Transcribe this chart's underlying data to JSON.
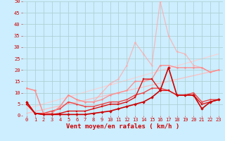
{
  "title": "",
  "xlabel": "Vent moyen/en rafales ( km/h )",
  "background_color": "#cceeff",
  "grid_color": "#aacccc",
  "xlim": [
    -0.5,
    23.5
  ],
  "ylim": [
    0,
    50
  ],
  "yticks": [
    0,
    5,
    10,
    15,
    20,
    25,
    30,
    35,
    40,
    45,
    50
  ],
  "xticks": [
    0,
    1,
    2,
    3,
    4,
    5,
    6,
    7,
    8,
    9,
    10,
    11,
    12,
    13,
    14,
    15,
    16,
    17,
    18,
    19,
    20,
    21,
    22,
    23
  ],
  "lines": [
    {
      "x": [
        0,
        1,
        2,
        3,
        4,
        5,
        6,
        7,
        8,
        9,
        10,
        11,
        12,
        13,
        14,
        15,
        16,
        17,
        18,
        19,
        20,
        21,
        22,
        23
      ],
      "y": [
        6,
        1,
        0.5,
        0.5,
        0.5,
        0.5,
        0.5,
        0.5,
        1,
        1.5,
        2,
        3,
        4,
        5,
        6,
        8,
        11,
        21,
        9,
        9,
        9,
        3,
        6,
        7
      ],
      "color": "#cc0000",
      "lw": 1.2,
      "marker": "D",
      "ms": 2.0,
      "alpha": 1.0,
      "zorder": 5
    },
    {
      "x": [
        0,
        1,
        2,
        3,
        4,
        5,
        6,
        7,
        8,
        9,
        10,
        11,
        12,
        13,
        14,
        15,
        16,
        17,
        18,
        19,
        20,
        21,
        22,
        23
      ],
      "y": [
        5,
        1,
        0.5,
        0.5,
        1,
        2,
        2,
        2,
        3,
        4,
        5,
        5,
        6,
        8,
        16,
        16,
        11,
        11,
        9,
        9,
        9,
        5,
        6,
        7
      ],
      "color": "#dd1111",
      "lw": 1.0,
      "marker": "s",
      "ms": 1.8,
      "alpha": 1.0,
      "zorder": 4
    },
    {
      "x": [
        0,
        1,
        2,
        3,
        4,
        5,
        6,
        7,
        8,
        9,
        10,
        11,
        12,
        13,
        14,
        15,
        16,
        17,
        18,
        19,
        20,
        21,
        22,
        23
      ],
      "y": [
        5,
        1,
        1,
        2,
        3,
        6,
        5,
        4,
        4,
        5,
        6,
        6,
        7,
        9,
        10,
        12,
        12,
        11,
        9,
        9,
        10,
        6,
        7,
        7
      ],
      "color": "#ee4444",
      "lw": 1.0,
      "marker": "o",
      "ms": 1.5,
      "alpha": 1.0,
      "zorder": 3
    },
    {
      "x": [
        0,
        1,
        2,
        3,
        4,
        5,
        6,
        7,
        8,
        9,
        10,
        11,
        12,
        13,
        14,
        15,
        16,
        17,
        18,
        19,
        20,
        21,
        22,
        23
      ],
      "y": [
        12,
        11,
        1,
        1,
        4,
        9,
        7,
        6,
        6,
        7,
        9,
        10,
        11,
        15,
        15,
        16,
        22,
        22,
        21,
        21,
        21,
        21,
        19,
        20
      ],
      "color": "#ff8888",
      "lw": 1.0,
      "marker": "o",
      "ms": 1.5,
      "alpha": 0.9,
      "zorder": 3
    },
    {
      "x": [
        0,
        1,
        2,
        3,
        4,
        5,
        6,
        7,
        8,
        9,
        10,
        11,
        12,
        13,
        14,
        15,
        16,
        17,
        18,
        19,
        20,
        21,
        22,
        23
      ],
      "y": [
        12,
        11,
        1,
        1,
        4,
        9,
        7,
        6,
        6,
        10,
        14,
        16,
        22,
        32,
        27,
        22,
        50,
        35,
        28,
        27,
        22,
        21,
        19,
        20
      ],
      "color": "#ffaaaa",
      "lw": 0.9,
      "marker": "o",
      "ms": 1.5,
      "alpha": 0.8,
      "zorder": 2
    },
    {
      "x": [
        0,
        23
      ],
      "y": [
        1,
        20
      ],
      "color": "#ffbbbb",
      "lw": 1.0,
      "marker": null,
      "ms": 0,
      "alpha": 0.85,
      "zorder": 1
    },
    {
      "x": [
        0,
        23
      ],
      "y": [
        3,
        27
      ],
      "color": "#ffcccc",
      "lw": 1.0,
      "marker": null,
      "ms": 0,
      "alpha": 0.75,
      "zorder": 1
    }
  ],
  "xlabel_color": "#cc0000",
  "tick_color": "#cc0000",
  "tick_fontsize": 5.0,
  "xlabel_fontsize": 6.5
}
